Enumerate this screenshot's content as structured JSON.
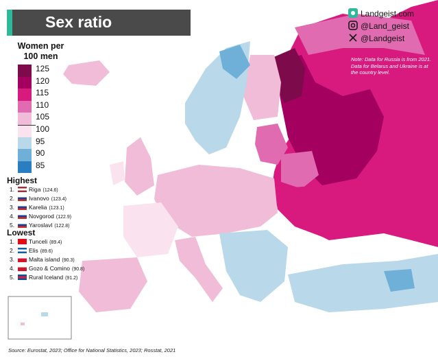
{
  "title": "Sex ratio",
  "social": {
    "website": "Landgeist.com",
    "instagram": "@Land_geist",
    "x": "@Landgeist",
    "icons": [
      "landgeist-logo-icon",
      "instagram-icon",
      "x-icon"
    ]
  },
  "legend": {
    "title_line1": "Women per",
    "title_line2": "100 men",
    "bins": [
      {
        "label": "125",
        "color": "#7d0a4a"
      },
      {
        "label": "120",
        "color": "#a3005f"
      },
      {
        "label": "115",
        "color": "#d81a7f"
      },
      {
        "label": "110",
        "color": "#e06bb1"
      },
      {
        "label": "105",
        "color": "#f0bcd8"
      },
      {
        "label": "100",
        "color": "#fbe2ef"
      },
      {
        "label": "95",
        "color": "#b9d9ea"
      },
      {
        "label": "90",
        "color": "#6fb0d8"
      },
      {
        "label": "85",
        "color": "#2a7dc0"
      }
    ]
  },
  "highest": {
    "heading": "Highest",
    "items": [
      {
        "rank": "1.",
        "name": "Riga",
        "value": "(124.6)",
        "flag": [
          "#9e3039",
          "#ffffff",
          "#9e3039"
        ]
      },
      {
        "rank": "2.",
        "name": "Ivanovo",
        "value": "(123.4)",
        "flag": [
          "#ffffff",
          "#1c3f95",
          "#d52b1e"
        ]
      },
      {
        "rank": "3.",
        "name": "Karelia",
        "value": "(123.1)",
        "flag": [
          "#ffffff",
          "#1c3f95",
          "#d52b1e"
        ]
      },
      {
        "rank": "4.",
        "name": "Novgorod",
        "value": "(122.9)",
        "flag": [
          "#ffffff",
          "#1c3f95",
          "#d52b1e"
        ]
      },
      {
        "rank": "5.",
        "name": "Yaroslavl",
        "value": "(122.8)",
        "flag": [
          "#ffffff",
          "#1c3f95",
          "#d52b1e"
        ]
      }
    ]
  },
  "lowest": {
    "heading": "Lowest",
    "items": [
      {
        "rank": "1.",
        "name": "Tunceli",
        "value": "(89.4)",
        "flag": [
          "#e30a17",
          "#e30a17",
          "#e30a17"
        ]
      },
      {
        "rank": "2.",
        "name": "Elis",
        "value": "(89.6)",
        "flag": [
          "#0d5eaf",
          "#ffffff",
          "#0d5eaf"
        ]
      },
      {
        "rank": "3.",
        "name": "Malta island",
        "value": "(90.3)",
        "flag": [
          "#ffffff",
          "#cf142b",
          "#cf142b"
        ]
      },
      {
        "rank": "4.",
        "name": "Gozo & Comino",
        "value": "(90.8)",
        "flag": [
          "#ffffff",
          "#cf142b",
          "#cf142b"
        ]
      },
      {
        "rank": "5.",
        "name": "Rural Iceland",
        "value": "(91.2)",
        "flag": [
          "#02529c",
          "#dc1e35",
          "#02529c"
        ]
      }
    ]
  },
  "note": "Note: Data for Russia is from 2021. Data for Belarus and Ukraine is at the country level.",
  "source": "Source: Eurostat, 2023; Office for National Statistics, 2023; Rosstat, 2021",
  "colors": {
    "sea": "#ffffff",
    "nodata": "#e8e8e8",
    "title_bg": "#4a4a4a",
    "accent": "#2fb89a"
  }
}
